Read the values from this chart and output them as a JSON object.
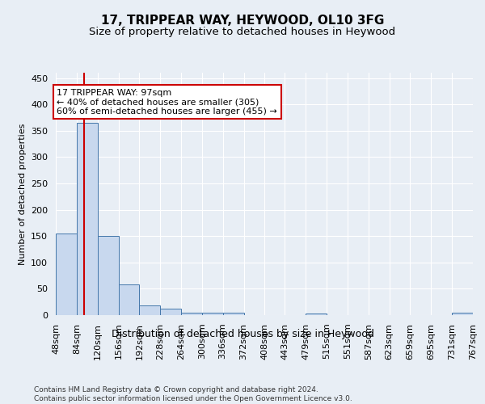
{
  "title": "17, TRIPPEAR WAY, HEYWOOD, OL10 3FG",
  "subtitle": "Size of property relative to detached houses in Heywood",
  "xlabel": "Distribution of detached houses by size in Heywood",
  "ylabel": "Number of detached properties",
  "footnote": "Contains HM Land Registry data © Crown copyright and database right 2024.\nContains public sector information licensed under the Open Government Licence v3.0.",
  "bar_color": "#c8d8ee",
  "bar_edge_color": "#4477aa",
  "bins": [
    48,
    84,
    120,
    156,
    192,
    228,
    264,
    300,
    336,
    372,
    408,
    443,
    479,
    515,
    551,
    587,
    623,
    659,
    695,
    731,
    767
  ],
  "bin_labels": [
    "48sqm",
    "84sqm",
    "120sqm",
    "156sqm",
    "192sqm",
    "228sqm",
    "264sqm",
    "300sqm",
    "336sqm",
    "372sqm",
    "408sqm",
    "443sqm",
    "479sqm",
    "515sqm",
    "551sqm",
    "587sqm",
    "623sqm",
    "659sqm",
    "695sqm",
    "731sqm",
    "767sqm"
  ],
  "counts": [
    155,
    365,
    150,
    58,
    18,
    13,
    5,
    4,
    5,
    0,
    0,
    0,
    3,
    0,
    0,
    0,
    0,
    0,
    0,
    5
  ],
  "property_size": 97,
  "vline_color": "#cc0000",
  "annotation_line1": "17 TRIPPEAR WAY: 97sqm",
  "annotation_line2": "← 40% of detached houses are smaller (305)",
  "annotation_line3": "60% of semi-detached houses are larger (455) →",
  "annotation_box_color": "#ffffff",
  "annotation_box_edge": "#cc0000",
  "ylim": [
    0,
    460
  ],
  "yticks": [
    0,
    50,
    100,
    150,
    200,
    250,
    300,
    350,
    400,
    450
  ],
  "background_color": "#e8eef5",
  "plot_bg_color": "#e8eef5",
  "grid_color": "#ffffff",
  "title_fontsize": 11,
  "subtitle_fontsize": 9.5,
  "annotation_fontsize": 8,
  "ylabel_fontsize": 8,
  "xlabel_fontsize": 9,
  "tick_fontsize": 8,
  "footnote_fontsize": 6.5
}
